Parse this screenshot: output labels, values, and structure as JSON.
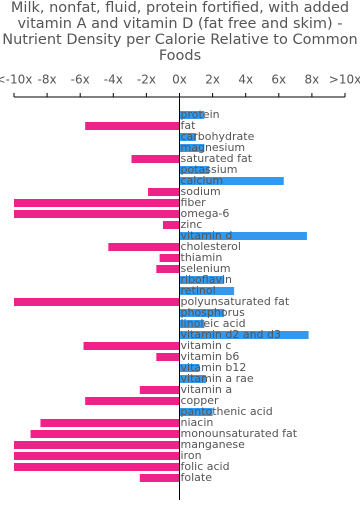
{
  "chart_data": {
    "type": "hbar",
    "title": "Milk, nonfat, fluid, protein fortified, with added vitamin A and vitamin D (fat free and skim) - Nutrient Density per Calorie Relative to Common Foods",
    "categories": [
      "protein",
      "fat",
      "carbohydrate",
      "magnesium",
      "saturated fat",
      "potassium",
      "calcium",
      "sodium",
      "fiber",
      "omega-6",
      "zinc",
      "vitamin d",
      "cholesterol",
      "thiamin",
      "selenium",
      "riboflavin",
      "retinol",
      "polyunsaturated fat",
      "phosphorus",
      "linoleic acid",
      "vitamin d2 and d3",
      "vitamin c",
      "vitamin b6",
      "vitamin b12",
      "vitamin a rae",
      "vitamin a",
      "copper",
      "pantothenic acid",
      "niacin",
      "monounsaturated fat",
      "manganese",
      "iron",
      "folic acid",
      "folate"
    ],
    "values": [
      1.5,
      -5.7,
      1.0,
      1.5,
      -2.9,
      1.8,
      6.3,
      -1.9,
      -10,
      -10,
      -1.0,
      7.7,
      -4.3,
      -1.2,
      -1.4,
      2.7,
      3.3,
      -10,
      2.7,
      1.5,
      7.8,
      -5.8,
      -1.4,
      1.2,
      1.6,
      -2.4,
      -5.7,
      2.0,
      -8.4,
      -9.0,
      -10,
      -10,
      -10,
      -2.4
    ],
    "positive_color": "#3399ee",
    "negative_color": "#ee2288",
    "xlim": [
      -10,
      10
    ],
    "xticks": [
      {
        "value": -10,
        "label": "<-10x"
      },
      {
        "value": -8,
        "label": "-8x"
      },
      {
        "value": -6,
        "label": "-6x"
      },
      {
        "value": -4,
        "label": "-4x"
      },
      {
        "value": -2,
        "label": "-2x"
      },
      {
        "value": 0,
        "label": "0x"
      },
      {
        "value": 2,
        "label": "2x"
      },
      {
        "value": 4,
        "label": "4x"
      },
      {
        "value": 6,
        "label": "6x"
      },
      {
        "value": 8,
        "label": "8x"
      },
      {
        "value": 10,
        "label": ">10x"
      }
    ]
  }
}
